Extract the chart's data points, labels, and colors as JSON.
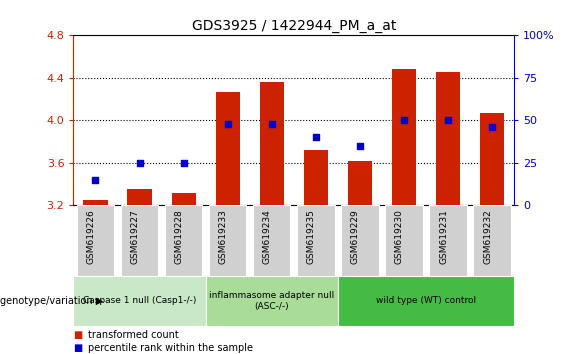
{
  "title": "GDS3925 / 1422944_PM_a_at",
  "samples": [
    "GSM619226",
    "GSM619227",
    "GSM619228",
    "GSM619233",
    "GSM619234",
    "GSM619235",
    "GSM619229",
    "GSM619230",
    "GSM619231",
    "GSM619232"
  ],
  "bar_values": [
    3.25,
    3.35,
    3.32,
    4.27,
    4.36,
    3.72,
    3.62,
    4.48,
    4.46,
    4.07
  ],
  "percentile_values": [
    15,
    25,
    25,
    48,
    48,
    40,
    35,
    50,
    50,
    46
  ],
  "bar_color": "#cc2200",
  "dot_color": "#0000cc",
  "ylim": [
    3.2,
    4.8
  ],
  "y2lim": [
    0,
    100
  ],
  "yticks": [
    3.2,
    3.6,
    4.0,
    4.4,
    4.8
  ],
  "y2ticks": [
    0,
    25,
    50,
    75,
    100
  ],
  "y2ticklabels": [
    "0",
    "25",
    "50",
    "75",
    "100%"
  ],
  "groups": [
    {
      "label": "Caspase 1 null (Casp1-/-)",
      "start": 0,
      "end": 3,
      "color": "#c8e8c8"
    },
    {
      "label": "inflammasome adapter null\n(ASC-/-)",
      "start": 3,
      "end": 6,
      "color": "#a8dc98"
    },
    {
      "label": "wild type (WT) control",
      "start": 6,
      "end": 10,
      "color": "#44bb44"
    }
  ],
  "legend_bar_label": "transformed count",
  "legend_dot_label": "percentile rank within the sample",
  "genotype_label": "genotype/variation",
  "background_color": "#ffffff",
  "plot_bg_color": "#ffffff",
  "sample_box_color": "#d0d0d0",
  "grid_color": "#000000",
  "tick_color_left": "#cc2200",
  "tick_color_right": "#0000cc"
}
